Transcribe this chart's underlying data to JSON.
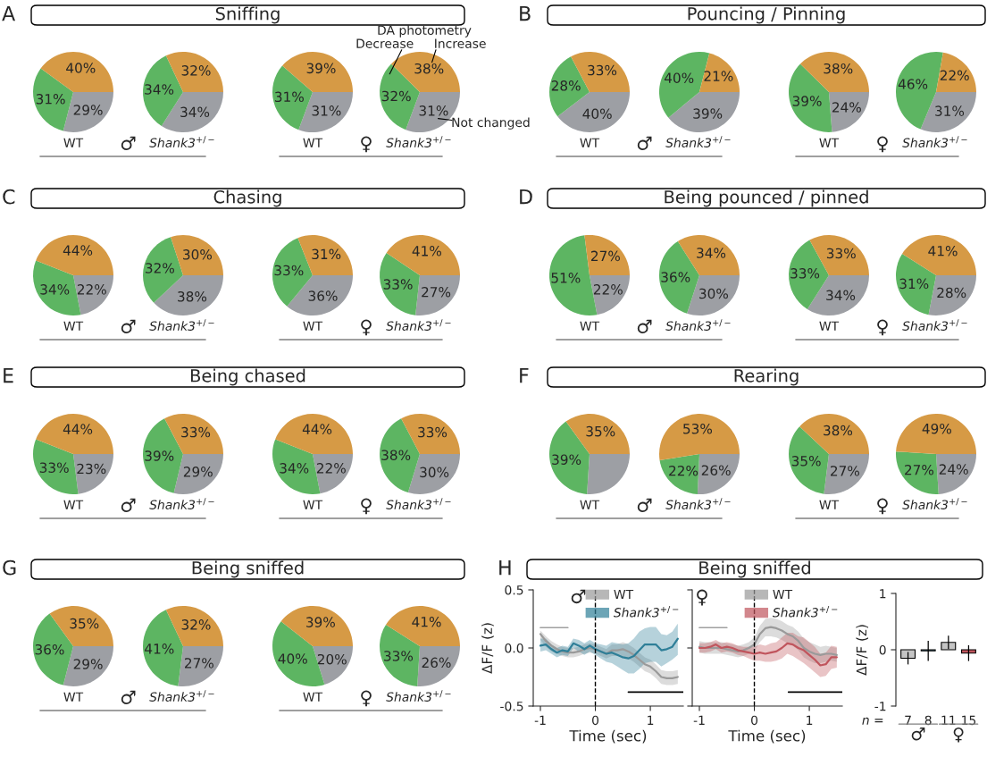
{
  "chart_data": [
    {
      "type": "pie",
      "title": "WT",
      "categories": [
        null,
        null,
        null
      ],
      "values": [
        29,
        31,
        40
      ],
      "value_labels": [
        "29%",
        "31%",
        "40%"
      ],
      "colors": [
        "#9d9fa4",
        "#5db562",
        "#d69a45"
      ],
      "annotations": [
        "A",
        "Sniffing",
        "♂"
      ]
    },
    {
      "type": "pie",
      "title": "Shank3$^{+/−}$",
      "categories": [
        null,
        null,
        null
      ],
      "values": [
        34,
        34,
        32
      ],
      "value_labels": [
        "34%",
        "34%",
        "32%"
      ],
      "colors": [
        "#9d9fa4",
        "#5db562",
        "#d69a45"
      ]
    },
    {
      "type": "pie",
      "title": "WT",
      "categories": [
        null,
        null,
        null
      ],
      "values": [
        31,
        31,
        39
      ],
      "value_labels": [
        "31%",
        "31%",
        "39%"
      ],
      "colors": [
        "#9d9fa4",
        "#5db562",
        "#d69a45"
      ],
      "annotations": [
        "♀"
      ]
    },
    {
      "type": "pie",
      "title": "Shank3$^{+/−}$",
      "categories": [
        "Not changed",
        "Decrease",
        "Increase"
      ],
      "values": [
        31,
        32,
        38
      ],
      "value_labels": [
        "31%",
        "32%",
        "38%"
      ],
      "colors": [
        "#9d9fa4",
        "#5db562",
        "#d69a45"
      ],
      "annotations": [
        "DA photometry"
      ]
    },
    {
      "type": "pie",
      "title": "WT",
      "categories": [
        null,
        null,
        null
      ],
      "values": [
        40,
        28,
        33
      ],
      "value_labels": [
        "40%",
        "28%",
        "33%"
      ],
      "colors": [
        "#9d9fa4",
        "#5db562",
        "#d69a45"
      ],
      "annotations": [
        "B",
        "Pouncing / Pinning",
        "♂"
      ]
    },
    {
      "type": "pie",
      "title": "Shank3$^{+/−}$",
      "categories": [
        null,
        null,
        null
      ],
      "values": [
        39,
        40,
        21
      ],
      "value_labels": [
        "39%",
        "40%",
        "21%"
      ],
      "colors": [
        "#9d9fa4",
        "#5db562",
        "#d69a45"
      ]
    },
    {
      "type": "pie",
      "title": "WT",
      "categories": [
        null,
        null,
        null
      ],
      "values": [
        24,
        39,
        38
      ],
      "value_labels": [
        "24%",
        "39%",
        "38%"
      ],
      "colors": [
        "#9d9fa4",
        "#5db562",
        "#d69a45"
      ],
      "annotations": [
        "♀"
      ]
    },
    {
      "type": "pie",
      "title": "Shank3$^{+/−}$",
      "categories": [
        null,
        null,
        null
      ],
      "values": [
        31,
        46,
        22
      ],
      "value_labels": [
        "31%",
        "46%",
        "22%"
      ],
      "colors": [
        "#9d9fa4",
        "#5db562",
        "#d69a45"
      ]
    },
    {
      "type": "pie",
      "title": "WT",
      "categories": [
        null,
        null,
        null
      ],
      "values": [
        22,
        34,
        44
      ],
      "value_labels": [
        "22%",
        "34%",
        "44%"
      ],
      "colors": [
        "#9d9fa4",
        "#5db562",
        "#d69a45"
      ],
      "annotations": [
        "C",
        "Chasing",
        "♂"
      ]
    },
    {
      "type": "pie",
      "title": "Shank3$^{+/−}$",
      "categories": [
        null,
        null,
        null
      ],
      "values": [
        38,
        32,
        30
      ],
      "value_labels": [
        "38%",
        "32%",
        "30%"
      ],
      "colors": [
        "#9d9fa4",
        "#5db562",
        "#d69a45"
      ]
    },
    {
      "type": "pie",
      "title": "WT",
      "categories": [
        null,
        null,
        null
      ],
      "values": [
        36,
        33,
        31
      ],
      "value_labels": [
        "36%",
        "33%",
        "31%"
      ],
      "colors": [
        "#9d9fa4",
        "#5db562",
        "#d69a45"
      ],
      "annotations": [
        "♀"
      ]
    },
    {
      "type": "pie",
      "title": "Shank3$^{+/−}$",
      "categories": [
        null,
        null,
        null
      ],
      "values": [
        27,
        33,
        41
      ],
      "value_labels": [
        "27%",
        "33%",
        "41%"
      ],
      "colors": [
        "#9d9fa4",
        "#5db562",
        "#d69a45"
      ]
    },
    {
      "type": "pie",
      "title": "WT",
      "categories": [
        null,
        null,
        null
      ],
      "values": [
        22,
        51,
        27
      ],
      "value_labels": [
        "22%",
        "51%",
        "27%"
      ],
      "colors": [
        "#9d9fa4",
        "#5db562",
        "#d69a45"
      ],
      "annotations": [
        "D",
        "Being pounced / pinned",
        "♂"
      ]
    },
    {
      "type": "pie",
      "title": "Shank3$^{+/−}$",
      "categories": [
        null,
        null,
        null
      ],
      "values": [
        30,
        36,
        34
      ],
      "value_labels": [
        "30%",
        "36%",
        "34%"
      ],
      "colors": [
        "#9d9fa4",
        "#5db562",
        "#d69a45"
      ]
    },
    {
      "type": "pie",
      "title": "WT",
      "categories": [
        null,
        null,
        null
      ],
      "values": [
        34,
        33,
        33
      ],
      "value_labels": [
        "34%",
        "33%",
        "33%"
      ],
      "colors": [
        "#9d9fa4",
        "#5db562",
        "#d69a45"
      ],
      "annotations": [
        "♀"
      ]
    },
    {
      "type": "pie",
      "title": "Shank3$^{+/−}$",
      "categories": [
        null,
        null,
        null
      ],
      "values": [
        28,
        31,
        41
      ],
      "value_labels": [
        "28%",
        "31%",
        "41%"
      ],
      "colors": [
        "#9d9fa4",
        "#5db562",
        "#d69a45"
      ]
    },
    {
      "type": "pie",
      "title": "WT",
      "categories": [
        null,
        null,
        null
      ],
      "values": [
        23,
        33,
        44
      ],
      "value_labels": [
        "23%",
        "33%",
        "44%"
      ],
      "colors": [
        "#9d9fa4",
        "#5db562",
        "#d69a45"
      ],
      "annotations": [
        "E",
        "Being chased",
        "♂"
      ]
    },
    {
      "type": "pie",
      "title": "Shank3$^{+/−}$",
      "categories": [
        null,
        null,
        null
      ],
      "values": [
        29,
        39,
        33
      ],
      "value_labels": [
        "29%",
        "39%",
        "33%"
      ],
      "colors": [
        "#9d9fa4",
        "#5db562",
        "#d69a45"
      ]
    },
    {
      "type": "pie",
      "title": "WT",
      "categories": [
        null,
        null,
        null
      ],
      "values": [
        22,
        34,
        44
      ],
      "value_labels": [
        "22%",
        "34%",
        "44%"
      ],
      "colors": [
        "#9d9fa4",
        "#5db562",
        "#d69a45"
      ],
      "annotations": [
        "♀"
      ]
    },
    {
      "type": "pie",
      "title": "Shank3$^{+/−}$",
      "categories": [
        null,
        null,
        null
      ],
      "values": [
        30,
        38,
        33
      ],
      "value_labels": [
        "30%",
        "38%",
        "33%"
      ],
      "colors": [
        "#9d9fa4",
        "#5db562",
        "#d69a45"
      ]
    },
    {
      "type": "pie",
      "title": "WT",
      "categories": [
        null,
        null,
        null
      ],
      "values": [
        26,
        39,
        35
      ],
      "value_labels": [
        null,
        "39%",
        "35%"
      ],
      "colors": [
        "#9d9fa4",
        "#5db562",
        "#d69a45"
      ],
      "annotations": [
        "F",
        "Rearing",
        "♂"
      ]
    },
    {
      "type": "pie",
      "title": "Shank3$^{+/−}$",
      "categories": [
        null,
        null,
        null
      ],
      "values": [
        26,
        22,
        53
      ],
      "value_labels": [
        "26%",
        "22%",
        "53%"
      ],
      "colors": [
        "#9d9fa4",
        "#5db562",
        "#d69a45"
      ]
    },
    {
      "type": "pie",
      "title": "WT",
      "categories": [
        null,
        null,
        null
      ],
      "values": [
        27,
        35,
        38
      ],
      "value_labels": [
        "27%",
        "35%",
        "38%"
      ],
      "colors": [
        "#9d9fa4",
        "#5db562",
        "#d69a45"
      ],
      "annotations": [
        "♀"
      ]
    },
    {
      "type": "pie",
      "title": "Shank3$^{+/−}$",
      "categories": [
        null,
        null,
        null
      ],
      "values": [
        24,
        27,
        49
      ],
      "value_labels": [
        "24%",
        "27%",
        "49%"
      ],
      "colors": [
        "#9d9fa4",
        "#5db562",
        "#d69a45"
      ]
    },
    {
      "type": "pie",
      "title": "WT",
      "categories": [
        null,
        null,
        null
      ],
      "values": [
        29,
        36,
        35
      ],
      "value_labels": [
        "29%",
        "36%",
        "35%"
      ],
      "colors": [
        "#9d9fa4",
        "#5db562",
        "#d69a45"
      ],
      "annotations": [
        "G",
        "Being sniffed",
        "♂"
      ]
    },
    {
      "type": "pie",
      "title": "Shank3$^{+/−}$",
      "categories": [
        null,
        null,
        null
      ],
      "values": [
        27,
        41,
        32
      ],
      "value_labels": [
        "27%",
        "41%",
        "32%"
      ],
      "colors": [
        "#9d9fa4",
        "#5db562",
        "#d69a45"
      ]
    },
    {
      "type": "pie",
      "title": "WT",
      "categories": [
        null,
        null,
        null
      ],
      "values": [
        20,
        40,
        39
      ],
      "value_labels": [
        "20%",
        "40%",
        "39%"
      ],
      "colors": [
        "#9d9fa4",
        "#5db562",
        "#d69a45"
      ],
      "annotations": [
        "♀"
      ]
    },
    {
      "type": "pie",
      "title": "Shank3$^{+/−}$",
      "categories": [
        null,
        null,
        null
      ],
      "values": [
        26,
        33,
        41
      ],
      "value_labels": [
        "26%",
        "33%",
        "41%"
      ],
      "colors": [
        "#9d9fa4",
        "#5db562",
        "#d69a45"
      ]
    },
    {
      "type": "line",
      "xlabel": "Time (sec)",
      "ylabel": "ΔF/F (z)",
      "xlim": [
        -1.13,
        1.6
      ],
      "ylim": [
        -0.5,
        0.5
      ],
      "xticks": [
        -1,
        0,
        1
      ],
      "yticks": [
        0.5,
        {
          "value": 0,
          "label": "0.0"
        },
        -0.5
      ],
      "legend": "top right",
      "annotations": [
        "H",
        "Being sniffed",
        "♂"
      ],
      "x": [
        -1,
        -0.9,
        -0.8,
        -0.7,
        -0.6,
        -0.5,
        -0.4,
        -0.3,
        -0.2,
        -0.1,
        0,
        0.1,
        0.2,
        0.3,
        0.4,
        0.5,
        0.6,
        0.7,
        0.8,
        0.9,
        1.0,
        1.1,
        1.2,
        1.3,
        1.4,
        1.5
      ],
      "ref_lines": [
        {
          "axis": "x",
          "value": 0,
          "line_style": "dashed",
          "color": "#000000"
        }
      ],
      "series": [
        {
          "name": "WT",
          "color": "#9a9a9a",
          "values": [
            0.12,
            0.06,
            0.02,
            -0.01,
            -0.03,
            -0.04,
            -0.04,
            -0.03,
            -0.01,
            0.0,
            -0.01,
            -0.03,
            -0.05,
            -0.02,
            -0.02,
            -0.01,
            -0.03,
            -0.06,
            -0.1,
            -0.14,
            -0.16,
            -0.2,
            -0.25,
            -0.26,
            -0.26,
            -0.25
          ],
          "lower": [
            0.07,
            0.01,
            -0.03,
            -0.05,
            -0.07,
            -0.08,
            -0.08,
            -0.07,
            -0.05,
            -0.04,
            -0.05,
            -0.07,
            -0.09,
            -0.07,
            -0.07,
            -0.07,
            -0.09,
            -0.12,
            -0.16,
            -0.2,
            -0.22,
            -0.26,
            -0.31,
            -0.32,
            -0.32,
            -0.31
          ],
          "upper": [
            0.15,
            0.1,
            0.06,
            0.03,
            0.01,
            0.0,
            0.0,
            0.01,
            0.03,
            0.04,
            0.03,
            0.01,
            -0.01,
            0.03,
            0.03,
            0.05,
            0.03,
            0.0,
            -0.04,
            -0.08,
            -0.1,
            -0.14,
            -0.19,
            -0.2,
            -0.2,
            -0.19
          ]
        },
        {
          "name": "Shank3$^{+/−}$",
          "color": "#2f7f98",
          "values": [
            0.02,
            0.03,
            -0.01,
            -0.04,
            -0.02,
            -0.03,
            0.04,
            0.02,
            -0.01,
            0.02,
            -0.01,
            -0.03,
            -0.05,
            -0.04,
            -0.06,
            -0.08,
            -0.09,
            -0.07,
            -0.02,
            0.03,
            0.03,
            0.03,
            -0.02,
            -0.01,
            0.01,
            0.08
          ],
          "lower": [
            -0.03,
            -0.02,
            -0.05,
            -0.08,
            -0.06,
            -0.07,
            0.0,
            -0.03,
            -0.06,
            -0.03,
            -0.06,
            -0.09,
            -0.12,
            -0.13,
            -0.16,
            -0.19,
            -0.22,
            -0.22,
            -0.18,
            -0.13,
            -0.12,
            -0.12,
            -0.16,
            -0.13,
            -0.1,
            -0.06
          ],
          "upper": [
            0.08,
            0.08,
            0.03,
            0.0,
            0.02,
            0.01,
            0.08,
            0.07,
            0.04,
            0.07,
            0.04,
            0.03,
            0.02,
            0.05,
            0.04,
            0.03,
            0.04,
            0.08,
            0.14,
            0.17,
            0.18,
            0.18,
            0.12,
            0.11,
            0.14,
            0.21
          ]
        },
        {
          "type": "line",
          "color": "#a0a0a0",
          "x": [
            -1,
            -0.5
          ],
          "values": [
            0.175,
            0.175
          ]
        },
        {
          "type": "line",
          "color": "#000000",
          "x": [
            0.6,
            1.6
          ],
          "values": [
            -0.38,
            -0.38
          ]
        }
      ]
    },
    {
      "type": "line",
      "xlabel": "Time (sec)",
      "xlim": [
        -1.13,
        1.6
      ],
      "ylim": [
        -0.5,
        0.5
      ],
      "xticks": [
        -1,
        0,
        1
      ],
      "yticks": [
        0.5,
        0,
        -0.5
      ],
      "tick_labels": "x",
      "legend": "top right",
      "annotations": [
        "♀"
      ],
      "x": [
        -1,
        -0.9,
        -0.8,
        -0.7,
        -0.6,
        -0.5,
        -0.4,
        -0.3,
        -0.2,
        -0.1,
        0,
        0.1,
        0.2,
        0.3,
        0.4,
        0.5,
        0.6,
        0.7,
        0.8,
        0.9,
        1.0,
        1.1,
        1.2,
        1.3,
        1.4,
        1.5
      ],
      "ref_lines": [
        {
          "axis": "x",
          "value": 0,
          "line_style": "dashed",
          "color": "#000000"
        }
      ],
      "series": [
        {
          "name": "WT",
          "color": "#9a9a9a",
          "values": [
            0.01,
            0.0,
            0.0,
            0.0,
            0.0,
            -0.01,
            -0.02,
            -0.03,
            -0.02,
            0.0,
            0.03,
            0.12,
            0.17,
            0.18,
            0.17,
            0.15,
            0.12,
            0.1,
            0.06,
            0.0,
            -0.03,
            -0.05,
            -0.06,
            -0.05,
            -0.05,
            -0.06
          ],
          "lower": [
            -0.04,
            -0.05,
            -0.05,
            -0.05,
            -0.05,
            -0.06,
            -0.07,
            -0.08,
            -0.07,
            -0.05,
            -0.03,
            0.05,
            0.1,
            0.1,
            0.09,
            0.07,
            0.04,
            0.02,
            -0.02,
            -0.08,
            -0.11,
            -0.13,
            -0.13,
            -0.12,
            -0.11,
            -0.12
          ],
          "upper": [
            0.06,
            0.05,
            0.05,
            0.05,
            0.05,
            0.04,
            0.03,
            0.02,
            0.03,
            0.05,
            0.09,
            0.19,
            0.25,
            0.26,
            0.25,
            0.23,
            0.2,
            0.18,
            0.14,
            0.08,
            0.05,
            0.03,
            0.01,
            0.02,
            0.01,
            0.0
          ]
        },
        {
          "name": "Shank3$^{+/−}$",
          "color": "#c0555d",
          "values": [
            0.0,
            0.0,
            0.01,
            0.03,
            0.0,
            0.01,
            0.0,
            -0.02,
            -0.03,
            -0.04,
            -0.05,
            -0.04,
            -0.05,
            -0.04,
            -0.03,
            0.0,
            0.04,
            0.03,
            0.0,
            -0.02,
            -0.06,
            -0.1,
            -0.15,
            -0.14,
            -0.08,
            -0.08
          ],
          "lower": [
            -0.04,
            -0.04,
            -0.03,
            -0.01,
            -0.04,
            -0.03,
            -0.04,
            -0.06,
            -0.07,
            -0.09,
            -0.11,
            -0.11,
            -0.12,
            -0.12,
            -0.11,
            -0.09,
            -0.05,
            -0.07,
            -0.1,
            -0.13,
            -0.17,
            -0.21,
            -0.25,
            -0.24,
            -0.18,
            -0.17
          ],
          "upper": [
            0.04,
            0.04,
            0.05,
            0.07,
            0.04,
            0.05,
            0.04,
            0.02,
            0.01,
            0.01,
            0.01,
            0.03,
            0.02,
            0.04,
            0.05,
            0.09,
            0.13,
            0.13,
            0.1,
            0.09,
            0.05,
            0.01,
            -0.05,
            -0.04,
            0.02,
            0.01
          ]
        },
        {
          "type": "line",
          "color": "#a0a0a0",
          "x": [
            -1,
            -0.5
          ],
          "values": [
            0.175,
            0.175
          ]
        },
        {
          "type": "line",
          "color": "#000000",
          "x": [
            0.62,
            1.6
          ],
          "values": [
            -0.38,
            -0.38
          ]
        }
      ]
    },
    {
      "type": "bar",
      "categories": [
        "7",
        "8",
        "11",
        "15"
      ],
      "values": [
        -0.15,
        -0.02,
        0.13,
        -0.06
      ],
      "errors": [
        0.11,
        0.18,
        0.12,
        0.14
      ],
      "colors": [
        "#c4c4c4",
        "#6aa3b5",
        "#c4c4c4",
        "#c0555d"
      ],
      "ylabel": "ΔF/F (z)",
      "ylim": [
        -1,
        1
      ],
      "yticks": [
        -1,
        0,
        1
      ],
      "annotations": [
        "n =",
        "♂",
        "♀"
      ]
    }
  ]
}
